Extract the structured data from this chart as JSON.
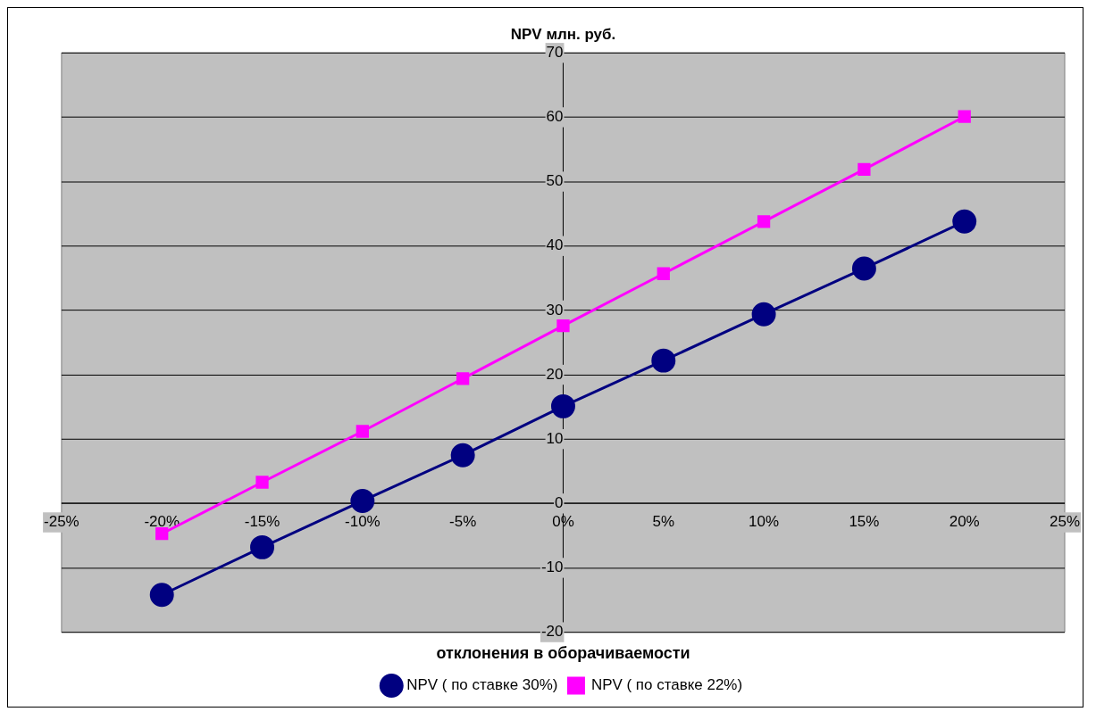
{
  "chart_data": {
    "type": "line",
    "title": "NPV млн. руб.",
    "xlabel": "отклонения в оборачиваемости",
    "x": [
      -20,
      -15,
      -10,
      -5,
      0,
      5,
      10,
      15,
      20
    ],
    "series": [
      {
        "name": "NPV ( по ставке 30%)",
        "color": "#000080",
        "marker": "circle",
        "values": [
          -14.2,
          -6.8,
          0.4,
          7.5,
          15.1,
          22.2,
          29.4,
          36.5,
          43.8
        ]
      },
      {
        "name": "NPV ( по ставке 22%)",
        "color": "#ff00ff",
        "marker": "square",
        "values": [
          -4.7,
          3.3,
          11.2,
          19.4,
          27.6,
          35.7,
          43.8,
          51.9,
          60.1
        ]
      }
    ],
    "xlim": [
      -25,
      25
    ],
    "xticks": [
      {
        "value": -25,
        "label": "-25%"
      },
      {
        "value": -20,
        "label": "-20%"
      },
      {
        "value": -15,
        "label": "-15%"
      },
      {
        "value": -10,
        "label": "-10%"
      },
      {
        "value": -5,
        "label": "-5%"
      },
      {
        "value": 0,
        "label": "0%"
      },
      {
        "value": 5,
        "label": "5%"
      },
      {
        "value": 10,
        "label": "10%"
      },
      {
        "value": 15,
        "label": "15%"
      },
      {
        "value": 20,
        "label": "20%"
      },
      {
        "value": 25,
        "label": "25%"
      }
    ],
    "ylim": [
      -20,
      70
    ],
    "yticks": [
      -20,
      -10,
      0,
      10,
      20,
      30,
      40,
      50,
      60,
      70
    ],
    "grid": "y",
    "legend": "bottom"
  }
}
